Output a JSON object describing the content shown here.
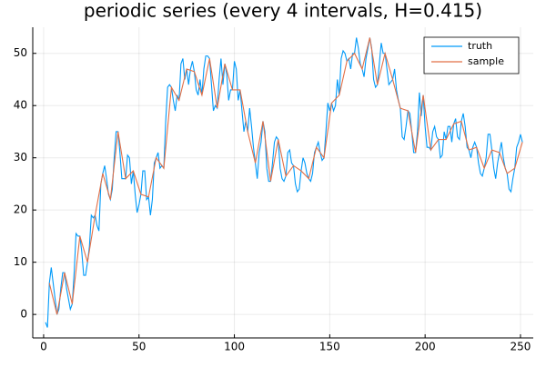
{
  "chart_data": {
    "type": "line",
    "title": "periodic series (every 4 intervals, H=0.415)",
    "xlim": [
      -5.7,
      256.7
    ],
    "ylim": [
      -4.5,
      55
    ],
    "xticks": [
      0,
      50,
      100,
      150,
      200,
      250
    ],
    "yticks": [
      0,
      10,
      20,
      30,
      40,
      50
    ],
    "grid": true,
    "legend": "top-right",
    "series": [
      {
        "name": "truth",
        "color": "#009af9",
        "x": [
          1,
          2,
          3,
          4,
          5,
          6,
          7,
          8,
          9,
          10,
          11,
          12,
          13,
          14,
          15,
          16,
          17,
          18,
          19,
          20,
          21,
          22,
          23,
          24,
          25,
          26,
          27,
          28,
          29,
          30,
          31,
          32,
          33,
          34,
          35,
          36,
          37,
          38,
          39,
          40,
          41,
          42,
          43,
          44,
          45,
          46,
          47,
          48,
          49,
          50,
          51,
          52,
          53,
          54,
          55,
          56,
          57,
          58,
          59,
          60,
          61,
          62,
          63,
          64,
          65,
          66,
          67,
          68,
          69,
          70,
          71,
          72,
          73,
          74,
          75,
          76,
          77,
          78,
          79,
          80,
          81,
          82,
          83,
          84,
          85,
          86,
          87,
          88,
          89,
          90,
          91,
          92,
          93,
          94,
          95,
          96,
          97,
          98,
          99,
          100,
          101,
          102,
          103,
          104,
          105,
          106,
          107,
          108,
          109,
          110,
          111,
          112,
          113,
          114,
          115,
          116,
          117,
          118,
          119,
          120,
          121,
          122,
          123,
          124,
          125,
          126,
          127,
          128,
          129,
          130,
          131,
          132,
          133,
          134,
          135,
          136,
          137,
          138,
          139,
          140,
          141,
          142,
          143,
          144,
          145,
          146,
          147,
          148,
          149,
          150,
          151,
          152,
          153,
          154,
          155,
          156,
          157,
          158,
          159,
          160,
          161,
          162,
          163,
          164,
          165,
          166,
          167,
          168,
          169,
          170,
          171,
          172,
          173,
          174,
          175,
          176,
          177,
          178,
          179,
          180,
          181,
          182,
          183,
          184,
          185,
          186,
          187,
          188,
          189,
          190,
          191,
          192,
          193,
          194,
          195,
          196,
          197,
          198,
          199,
          200,
          201,
          202,
          203,
          204,
          205,
          206,
          207,
          208,
          209,
          210,
          211,
          212,
          213,
          214,
          215,
          216,
          217,
          218,
          219,
          220,
          221,
          222,
          223,
          224,
          225,
          226,
          227,
          228,
          229,
          230,
          231,
          232,
          233,
          234,
          235,
          236,
          237,
          238,
          239,
          240,
          241,
          242,
          243,
          244,
          245,
          246,
          247,
          248,
          249,
          250,
          251
        ],
        "values": [
          -1.5,
          -2.5,
          6,
          9,
          6,
          3,
          0,
          1,
          5,
          8,
          8,
          5,
          3,
          1,
          2,
          8,
          15.5,
          15,
          15,
          12,
          7.5,
          7.5,
          10,
          13,
          19,
          18.5,
          19,
          17,
          16,
          25,
          27,
          28.5,
          26,
          23,
          22,
          24,
          30,
          35,
          35,
          31,
          26,
          26,
          26,
          30.5,
          30,
          25,
          27.5,
          23,
          19.5,
          21,
          23,
          27.5,
          27.5,
          22,
          22.5,
          19,
          22,
          29,
          30,
          31,
          28,
          28.5,
          28,
          37,
          43.5,
          44,
          43.5,
          41,
          39,
          42,
          41,
          48,
          49,
          45,
          47,
          44,
          47,
          48.5,
          46.5,
          43,
          42,
          45,
          42,
          47,
          49.5,
          49.5,
          49,
          44,
          39,
          40,
          39.5,
          45,
          49,
          44,
          48,
          46,
          41,
          43,
          43,
          48.5,
          47,
          41,
          43,
          39,
          35,
          37,
          35,
          39.5,
          36,
          32,
          29,
          26,
          31,
          33,
          37,
          35,
          28,
          25.5,
          25.5,
          29,
          33,
          34,
          33.5,
          28,
          26,
          25.5,
          26.5,
          31,
          31.5,
          29,
          28.5,
          25,
          23.5,
          24,
          27.5,
          30,
          29,
          27,
          26,
          25.5,
          27,
          31,
          32,
          33,
          31,
          29.5,
          30,
          35,
          40.5,
          39,
          40.5,
          39,
          40,
          45,
          42,
          49,
          50.5,
          50,
          48.5,
          49,
          47,
          50,
          50,
          53,
          51,
          48,
          47,
          45.5,
          49,
          51,
          53,
          51,
          45,
          43.5,
          44,
          48,
          52,
          50,
          50,
          47,
          44,
          44.5,
          45,
          47,
          43,
          41,
          39.5,
          34,
          33.5,
          36,
          39,
          38.5,
          35,
          31,
          31,
          35,
          42.5,
          38,
          42,
          36,
          32,
          32,
          31.5,
          35,
          36,
          34,
          33.5,
          30,
          30.5,
          35,
          33.5,
          36,
          36,
          33,
          36.5,
          37.5,
          34,
          33.5,
          37,
          38.5,
          36,
          32,
          31.5,
          30,
          32,
          33,
          32,
          29,
          27,
          26.5,
          28,
          30,
          34.5,
          34.5,
          31.5,
          28,
          26,
          29,
          31,
          33,
          30,
          28,
          27,
          24,
          23.5,
          26,
          28,
          32,
          33,
          34.5,
          33
        ]
      },
      {
        "name": "sample",
        "color": "#e26f46",
        "x": [
          3,
          7,
          11,
          15,
          19,
          23,
          27,
          31,
          35,
          39,
          43,
          47,
          51,
          55,
          59,
          63,
          67,
          71,
          75,
          79,
          83,
          87,
          91,
          95,
          99,
          103,
          107,
          111,
          115,
          119,
          123,
          127,
          131,
          135,
          139,
          143,
          147,
          151,
          155,
          159,
          163,
          167,
          171,
          175,
          179,
          183,
          187,
          191,
          195,
          199,
          203,
          207,
          211,
          215,
          219,
          223,
          227,
          231,
          235,
          239,
          243,
          247,
          251
        ],
        "values": [
          6,
          0,
          8,
          2,
          15,
          10,
          19,
          27,
          22,
          35,
          26,
          27.5,
          23,
          22.5,
          30,
          28,
          43.5,
          41,
          47,
          46.5,
          42,
          49,
          39.5,
          48,
          43,
          43,
          35,
          29,
          37,
          25.5,
          33.5,
          26.5,
          28.5,
          27.5,
          26,
          32,
          30,
          40.5,
          42,
          48.5,
          50,
          47,
          53,
          44,
          50,
          45,
          39.5,
          39,
          31,
          42,
          31.5,
          33.5,
          33.5,
          36.5,
          37,
          31.5,
          32,
          28,
          31.5,
          31,
          27,
          28,
          33
        ]
      }
    ]
  }
}
